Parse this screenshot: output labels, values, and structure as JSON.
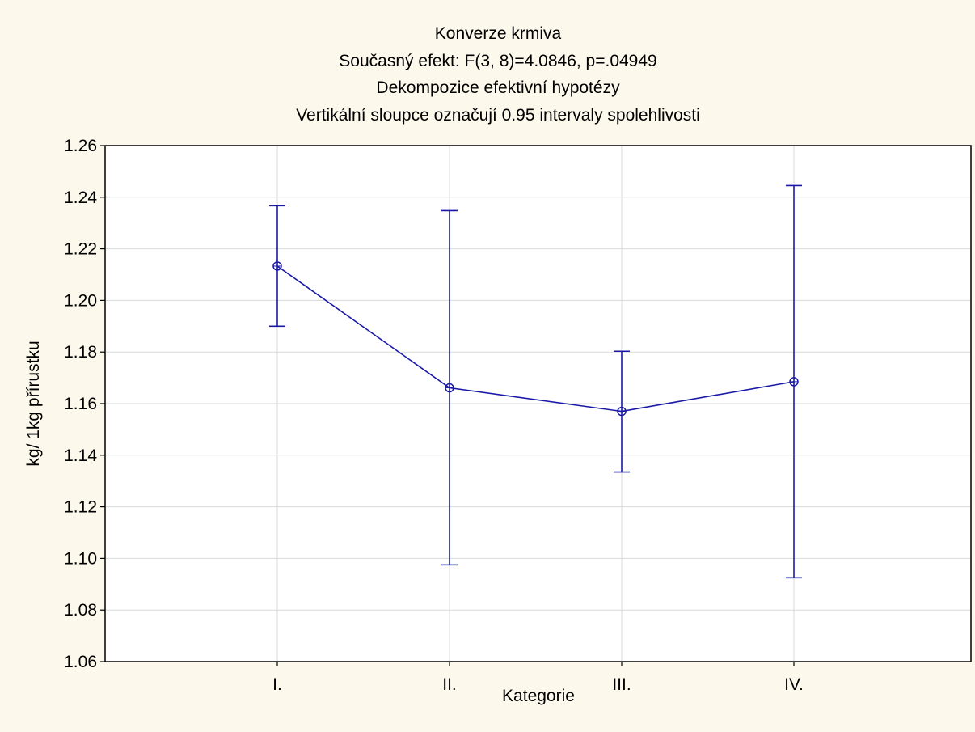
{
  "chart_data": {
    "type": "line",
    "title_lines": [
      "Konverze krmiva",
      "Současný efekt: F(3, 8)=4.0846, p=.04949",
      "Dekompozice efektivní hypotézy",
      "Vertikální sloupce označují 0.95 intervaly spolehlivosti"
    ],
    "xlabel": "Kategorie",
    "ylabel": "kg/ 1kg přírustku",
    "categories": [
      "I.",
      "II.",
      "III.",
      "IV."
    ],
    "series": [
      {
        "values": [
          1.2133,
          1.1661,
          1.157,
          1.1685
        ],
        "ci_lower": [
          1.19,
          1.0975,
          1.1335,
          1.0925
        ],
        "ci_upper": [
          1.2367,
          1.2348,
          1.1803,
          1.2445
        ]
      }
    ],
    "ylim": [
      1.06,
      1.26
    ],
    "yticks": [
      "1.06",
      "1.08",
      "1.10",
      "1.12",
      "1.14",
      "1.16",
      "1.18",
      "1.20",
      "1.22",
      "1.24",
      "1.26"
    ],
    "grid": true,
    "colors": {
      "series": "#1a1aa6",
      "grid": "#d9d9d9",
      "background": "#fdf8ec",
      "plot_background": "#ffffff"
    }
  }
}
